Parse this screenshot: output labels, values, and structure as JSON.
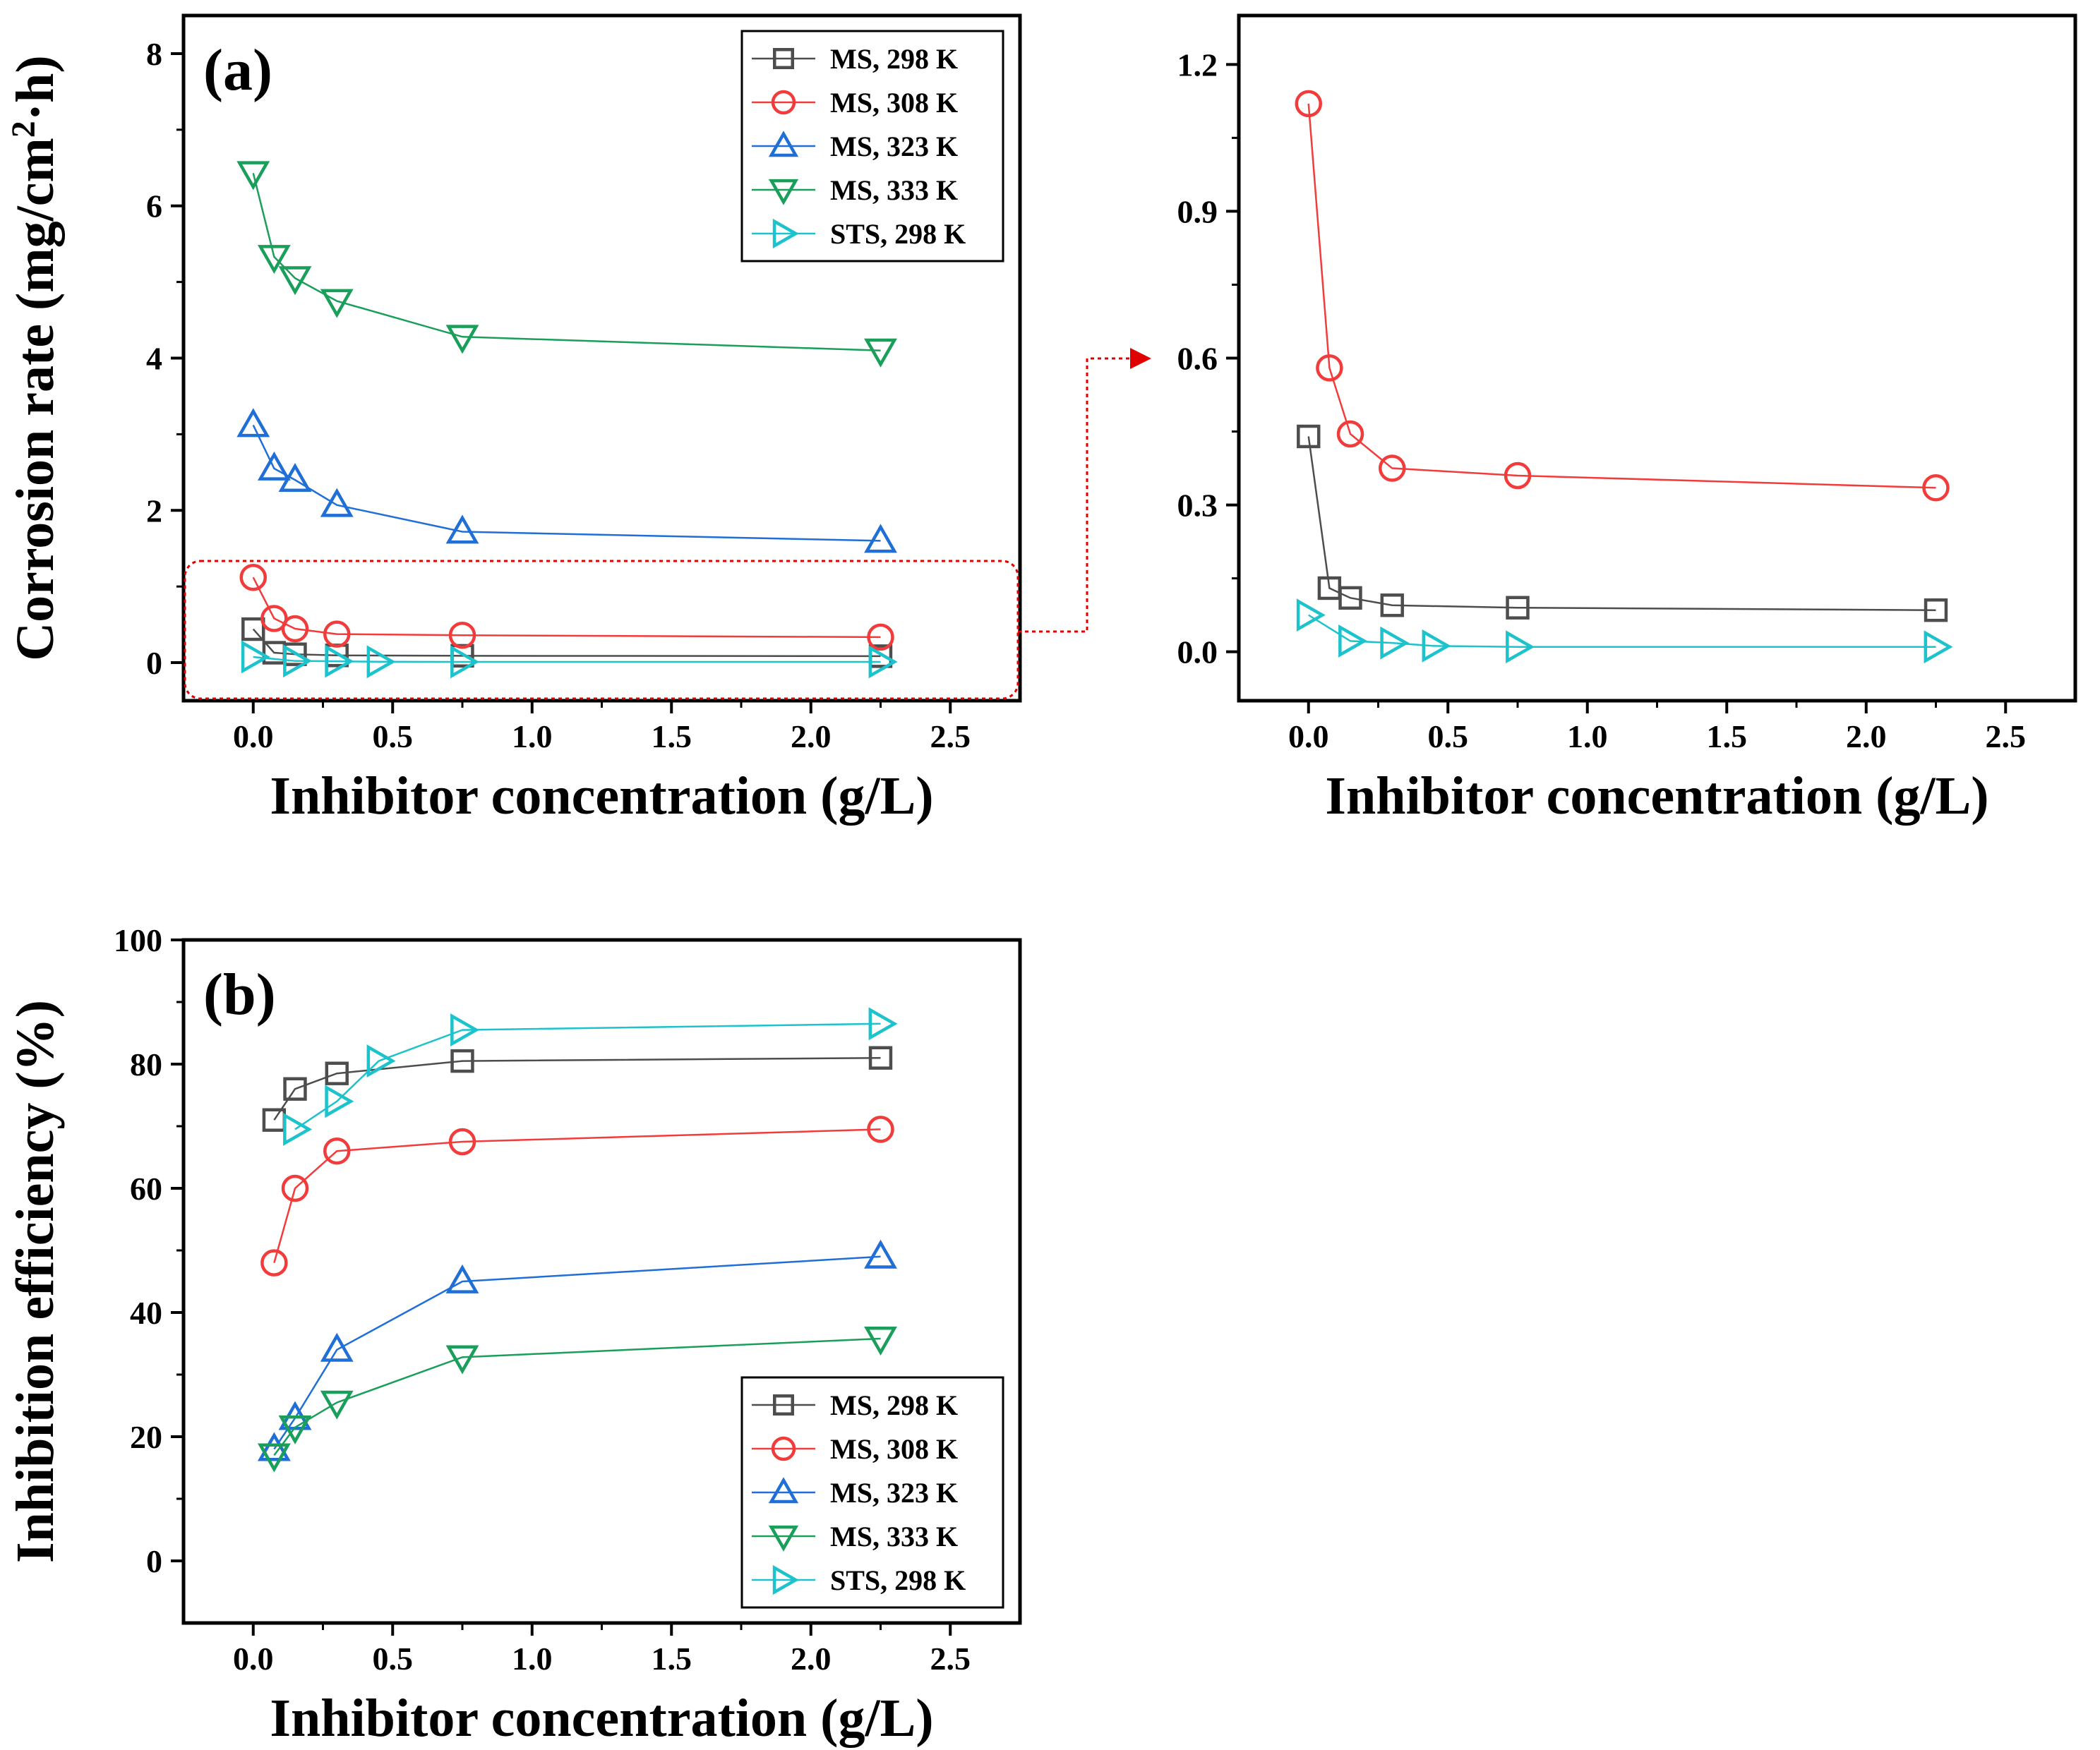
{
  "colors": {
    "ms_298": "#4d4d4d",
    "ms_308": "#f23b3b",
    "ms_323": "#1f6fd6",
    "ms_333": "#1a9f5a",
    "sts_298": "#1cc3cc",
    "callout": "#e00000"
  },
  "chart_data": [
    {
      "id": "panel-a",
      "type": "line",
      "panel_label": "(a)",
      "xlabel": "Inhibitor concentration (g/L)",
      "ylabel_main": "Corrosion rate (mg/cm",
      "ylabel_sup": "2",
      "ylabel_tail": "·h)",
      "xlim": [
        -0.25,
        2.75
      ],
      "ylim": [
        -0.5,
        8.5
      ],
      "xticks": [
        0.0,
        0.5,
        1.0,
        1.5,
        2.0,
        2.5
      ],
      "xtick_labels": [
        "0.0",
        "0.5",
        "1.0",
        "1.5",
        "2.0",
        "2.5"
      ],
      "yticks": [
        0,
        2,
        4,
        6,
        8
      ],
      "ytick_labels": [
        "0",
        "2",
        "4",
        "6",
        "8"
      ],
      "legend_position": "top-right",
      "series": [
        {
          "name": "MS, 298 K",
          "marker": "square",
          "color": "#4d4d4d",
          "x": [
            0,
            0.075,
            0.15,
            0.3,
            0.75,
            2.25
          ],
          "y": [
            0.44,
            0.13,
            0.11,
            0.095,
            0.09,
            0.085
          ]
        },
        {
          "name": "MS, 308 K",
          "marker": "circle",
          "color": "#f23b3b",
          "x": [
            0,
            0.075,
            0.15,
            0.3,
            0.75,
            2.25
          ],
          "y": [
            1.12,
            0.58,
            0.445,
            0.375,
            0.36,
            0.335
          ]
        },
        {
          "name": "MS, 323 K",
          "marker": "triangle-up",
          "color": "#1f6fd6",
          "x": [
            0,
            0.075,
            0.15,
            0.3,
            0.75,
            2.25
          ],
          "y": [
            3.12,
            2.55,
            2.4,
            2.07,
            1.72,
            1.6
          ]
        },
        {
          "name": "MS, 333 K",
          "marker": "triangle-down",
          "color": "#1a9f5a",
          "x": [
            0,
            0.075,
            0.15,
            0.3,
            0.75,
            2.25
          ],
          "y": [
            6.43,
            5.33,
            5.05,
            4.75,
            4.28,
            4.1
          ]
        },
        {
          "name": "STS, 298 K",
          "marker": "triangle-right",
          "color": "#1cc3cc",
          "x": [
            0,
            0.15,
            0.3,
            0.45,
            0.75,
            2.25
          ],
          "y": [
            0.075,
            0.022,
            0.018,
            0.012,
            0.01,
            0.01
          ]
        }
      ]
    },
    {
      "id": "panel-zoom",
      "type": "line",
      "xlabel": "Inhibitor concentration (g/L)",
      "xlim": [
        -0.25,
        2.75
      ],
      "ylim": [
        -0.1,
        1.3
      ],
      "xticks": [
        0.0,
        0.5,
        1.0,
        1.5,
        2.0,
        2.5
      ],
      "xtick_labels": [
        "0.0",
        "0.5",
        "1.0",
        "1.5",
        "2.0",
        "2.5"
      ],
      "yticks": [
        0.0,
        0.3,
        0.6,
        0.9,
        1.2
      ],
      "ytick_labels": [
        "0.0",
        "0.3",
        "0.6",
        "0.9",
        "1.2"
      ],
      "series": [
        {
          "name": "MS, 298 K",
          "marker": "square",
          "color": "#4d4d4d",
          "x": [
            0,
            0.075,
            0.15,
            0.3,
            0.75,
            2.25
          ],
          "y": [
            0.44,
            0.13,
            0.11,
            0.095,
            0.09,
            0.085
          ]
        },
        {
          "name": "MS, 308 K",
          "marker": "circle",
          "color": "#f23b3b",
          "x": [
            0,
            0.075,
            0.15,
            0.3,
            0.75,
            2.25
          ],
          "y": [
            1.12,
            0.58,
            0.445,
            0.375,
            0.36,
            0.335
          ]
        },
        {
          "name": "STS, 298 K",
          "marker": "triangle-right",
          "color": "#1cc3cc",
          "x": [
            0,
            0.15,
            0.3,
            0.45,
            0.75,
            2.25
          ],
          "y": [
            0.075,
            0.022,
            0.018,
            0.012,
            0.01,
            0.01
          ]
        }
      ]
    },
    {
      "id": "panel-b",
      "type": "line",
      "panel_label": "(b)",
      "xlabel": "Inhibitor concentration (g/L)",
      "ylabel_main": "Inhibition efficiency (%)",
      "ylabel_sup": "",
      "ylabel_tail": "",
      "xlim": [
        -0.25,
        2.75
      ],
      "ylim": [
        -10,
        100
      ],
      "xticks": [
        0.0,
        0.5,
        1.0,
        1.5,
        2.0,
        2.5
      ],
      "xtick_labels": [
        "0.0",
        "0.5",
        "1.0",
        "1.5",
        "2.0",
        "2.5"
      ],
      "yticks": [
        0,
        20,
        40,
        60,
        80,
        100
      ],
      "ytick_labels": [
        "0",
        "20",
        "40",
        "60",
        "80",
        "100"
      ],
      "legend_position": "bottom-right",
      "series": [
        {
          "name": "MS, 298 K",
          "marker": "square",
          "color": "#4d4d4d",
          "x": [
            0.075,
            0.15,
            0.3,
            0.75,
            2.25
          ],
          "y": [
            71,
            76,
            78.5,
            80.5,
            81
          ]
        },
        {
          "name": "MS, 308 K",
          "marker": "circle",
          "color": "#f23b3b",
          "x": [
            0.075,
            0.15,
            0.3,
            0.75,
            2.25
          ],
          "y": [
            48,
            60,
            66,
            67.5,
            69.5
          ]
        },
        {
          "name": "MS, 323 K",
          "marker": "triangle-up",
          "color": "#1f6fd6",
          "x": [
            0.075,
            0.15,
            0.3,
            0.75,
            2.25
          ],
          "y": [
            18,
            23,
            34,
            45,
            49
          ]
        },
        {
          "name": "MS, 333 K",
          "marker": "triangle-down",
          "color": "#1a9f5a",
          "x": [
            0.075,
            0.15,
            0.3,
            0.75,
            2.25
          ],
          "y": [
            17,
            21.5,
            25.5,
            32.8,
            35.8
          ]
        },
        {
          "name": "STS, 298 K",
          "marker": "triangle-right",
          "color": "#1cc3cc",
          "x": [
            0.15,
            0.3,
            0.45,
            0.75,
            2.25
          ],
          "y": [
            69.5,
            74,
            80.5,
            85.5,
            86.5
          ]
        }
      ]
    }
  ]
}
